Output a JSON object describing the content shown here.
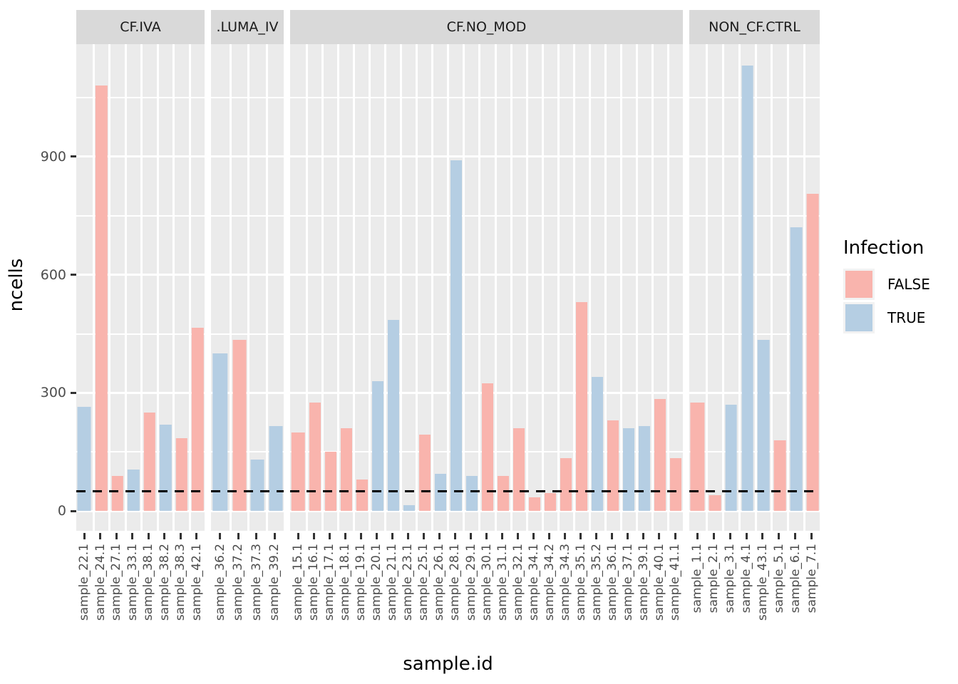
{
  "y_axis_title": "ncells",
  "x_axis_title": "sample.id",
  "y_tick_labels": [
    "0",
    "300",
    "600",
    "900"
  ],
  "legend": {
    "title": "Infection",
    "items": [
      {
        "label": "FALSE",
        "color": "#f9b4ad"
      },
      {
        "label": "TRUE",
        "color": "#b5cee3"
      }
    ]
  },
  "colors": {
    "false_bar": "#f9b4ad",
    "true_bar": "#b5cee3",
    "panel_bg": "#ebebeb",
    "strip_bg": "#d9d9d9",
    "gridline": "#ffffff",
    "tick": "#333333",
    "tick_label": "#4d4d4d",
    "hline": "#000000"
  },
  "chart_data": {
    "type": "bar",
    "title": "",
    "xlabel": "sample.id",
    "ylabel": "ncells",
    "ylim": [
      -50,
      1185
    ],
    "y_breaks": [
      0,
      300,
      600,
      900
    ],
    "y_minor_breaks": [
      150,
      450,
      750,
      1050
    ],
    "grid": true,
    "legend_position": "right",
    "legend_title": "Infection",
    "hline_dashed_y": 50,
    "facets": [
      {
        "label": "CF.IVA",
        "samples": [
          {
            "id": "sample_22.1",
            "infection": "TRUE",
            "ncells": 265
          },
          {
            "id": "sample_24.1",
            "infection": "FALSE",
            "ncells": 1080
          },
          {
            "id": "sample_27.1",
            "infection": "FALSE",
            "ncells": 90
          },
          {
            "id": "sample_33.1",
            "infection": "TRUE",
            "ncells": 105
          },
          {
            "id": "sample_38.1",
            "infection": "FALSE",
            "ncells": 250
          },
          {
            "id": "sample_38.2",
            "infection": "TRUE",
            "ncells": 220
          },
          {
            "id": "sample_38.3",
            "infection": "FALSE",
            "ncells": 185
          },
          {
            "id": "sample_42.1",
            "infection": "FALSE",
            "ncells": 465
          }
        ]
      },
      {
        "label": ".LUMA_IV",
        "samples": [
          {
            "id": "sample_36.2",
            "infection": "TRUE",
            "ncells": 400
          },
          {
            "id": "sample_37.2",
            "infection": "FALSE",
            "ncells": 435
          },
          {
            "id": "sample_37.3",
            "infection": "TRUE",
            "ncells": 130
          },
          {
            "id": "sample_39.2",
            "infection": "TRUE",
            "ncells": 215
          }
        ]
      },
      {
        "label": "CF.NO_MOD",
        "samples": [
          {
            "id": "sample_15.1",
            "infection": "FALSE",
            "ncells": 200
          },
          {
            "id": "sample_16.1",
            "infection": "FALSE",
            "ncells": 275
          },
          {
            "id": "sample_17.1",
            "infection": "FALSE",
            "ncells": 150
          },
          {
            "id": "sample_18.1",
            "infection": "FALSE",
            "ncells": 210
          },
          {
            "id": "sample_19.1",
            "infection": "FALSE",
            "ncells": 80
          },
          {
            "id": "sample_20.1",
            "infection": "TRUE",
            "ncells": 330
          },
          {
            "id": "sample_21.1",
            "infection": "TRUE",
            "ncells": 485
          },
          {
            "id": "sample_23.1",
            "infection": "TRUE",
            "ncells": 15
          },
          {
            "id": "sample_25.1",
            "infection": "FALSE",
            "ncells": 195
          },
          {
            "id": "sample_26.1",
            "infection": "TRUE",
            "ncells": 95
          },
          {
            "id": "sample_28.1",
            "infection": "TRUE",
            "ncells": 890
          },
          {
            "id": "sample_29.1",
            "infection": "TRUE",
            "ncells": 90
          },
          {
            "id": "sample_30.1",
            "infection": "FALSE",
            "ncells": 325
          },
          {
            "id": "sample_31.1",
            "infection": "FALSE",
            "ncells": 90
          },
          {
            "id": "sample_32.1",
            "infection": "FALSE",
            "ncells": 210
          },
          {
            "id": "sample_34.1",
            "infection": "FALSE",
            "ncells": 35
          },
          {
            "id": "sample_34.2",
            "infection": "FALSE",
            "ncells": 45
          },
          {
            "id": "sample_34.3",
            "infection": "FALSE",
            "ncells": 135
          },
          {
            "id": "sample_35.1",
            "infection": "FALSE",
            "ncells": 530
          },
          {
            "id": "sample_35.2",
            "infection": "TRUE",
            "ncells": 340
          },
          {
            "id": "sample_36.1",
            "infection": "FALSE",
            "ncells": 230
          },
          {
            "id": "sample_37.1",
            "infection": "TRUE",
            "ncells": 210
          },
          {
            "id": "sample_39.1",
            "infection": "TRUE",
            "ncells": 215
          },
          {
            "id": "sample_40.1",
            "infection": "FALSE",
            "ncells": 285
          },
          {
            "id": "sample_41.1",
            "infection": "FALSE",
            "ncells": 135
          }
        ]
      },
      {
        "label": "NON_CF.CTRL",
        "samples": [
          {
            "id": "sample_1.1",
            "infection": "FALSE",
            "ncells": 275
          },
          {
            "id": "sample_2.1",
            "infection": "FALSE",
            "ncells": 40
          },
          {
            "id": "sample_3.1",
            "infection": "TRUE",
            "ncells": 270
          },
          {
            "id": "sample_4.1",
            "infection": "TRUE",
            "ncells": 1130
          },
          {
            "id": "sample_43.1",
            "infection": "TRUE",
            "ncells": 435
          },
          {
            "id": "sample_5.1",
            "infection": "FALSE",
            "ncells": 180
          },
          {
            "id": "sample_6.1",
            "infection": "TRUE",
            "ncells": 720
          },
          {
            "id": "sample_7.1",
            "infection": "FALSE",
            "ncells": 805
          }
        ]
      }
    ]
  }
}
